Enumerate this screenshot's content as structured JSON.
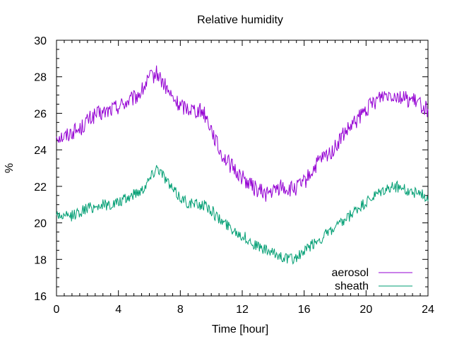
{
  "chart_data": {
    "type": "line",
    "title": "Relative humidity",
    "xlabel": "Time [hour]",
    "ylabel": "%",
    "xlim": [
      0,
      24
    ],
    "ylim": [
      16,
      30
    ],
    "x_ticks": [
      "0",
      "4",
      "8",
      "12",
      "16",
      "20",
      "24"
    ],
    "y_ticks": [
      "16",
      "18",
      "20",
      "22",
      "24",
      "26",
      "28",
      "30"
    ],
    "grid": false,
    "legend_position": "bottom-right",
    "series": [
      {
        "name": "aerosol",
        "color": "#9400d3",
        "x": [
          0,
          0.5,
          1,
          1.5,
          2,
          2.5,
          3,
          3.5,
          4,
          4.5,
          5,
          5.5,
          6,
          6.5,
          7,
          7.5,
          8,
          8.5,
          9,
          9.5,
          10,
          10.5,
          11,
          11.5,
          12,
          12.5,
          13,
          13.5,
          14,
          14.5,
          15,
          15.5,
          16,
          16.5,
          17,
          17.5,
          18,
          18.5,
          19,
          19.5,
          20,
          20.5,
          21,
          21.5,
          22,
          22.5,
          23,
          23.5,
          24
        ],
        "values": [
          24.8,
          24.7,
          25.0,
          25.1,
          25.6,
          25.9,
          26.0,
          26.2,
          26.4,
          26.6,
          26.8,
          27.2,
          27.9,
          28.2,
          27.5,
          26.8,
          26.4,
          26.3,
          26.2,
          26.1,
          25.2,
          24.0,
          23.4,
          22.9,
          22.5,
          22.1,
          21.8,
          21.6,
          21.7,
          22.0,
          21.8,
          21.9,
          22.2,
          22.8,
          23.4,
          23.7,
          24.1,
          24.8,
          25.2,
          25.7,
          26.2,
          26.6,
          27.0,
          27.1,
          27.0,
          26.8,
          26.7,
          26.5,
          26.2
        ]
      },
      {
        "name": "sheath",
        "color": "#009e73",
        "x": [
          0,
          0.5,
          1,
          1.5,
          2,
          2.5,
          3,
          3.5,
          4,
          4.5,
          5,
          5.5,
          6,
          6.5,
          7,
          7.5,
          8,
          8.5,
          9,
          9.5,
          10,
          10.5,
          11,
          11.5,
          12,
          12.5,
          13,
          13.5,
          14,
          14.5,
          15,
          15.5,
          16,
          16.5,
          17,
          17.5,
          18,
          18.5,
          19,
          19.5,
          20,
          20.5,
          21,
          21.5,
          22,
          22.5,
          23,
          23.5,
          24
        ],
        "values": [
          20.5,
          20.3,
          20.4,
          20.6,
          20.8,
          20.9,
          21.0,
          21.0,
          21.1,
          21.3,
          21.6,
          21.8,
          22.4,
          23.1,
          22.5,
          21.8,
          21.4,
          21.1,
          21.0,
          21.0,
          20.7,
          20.2,
          19.9,
          19.6,
          19.3,
          19.0,
          18.7,
          18.5,
          18.3,
          18.2,
          18.0,
          18.1,
          18.4,
          18.8,
          19.1,
          19.4,
          19.7,
          20.0,
          20.4,
          20.8,
          21.1,
          21.4,
          21.7,
          21.9,
          22.0,
          21.8,
          21.7,
          21.6,
          21.4
        ]
      }
    ]
  }
}
